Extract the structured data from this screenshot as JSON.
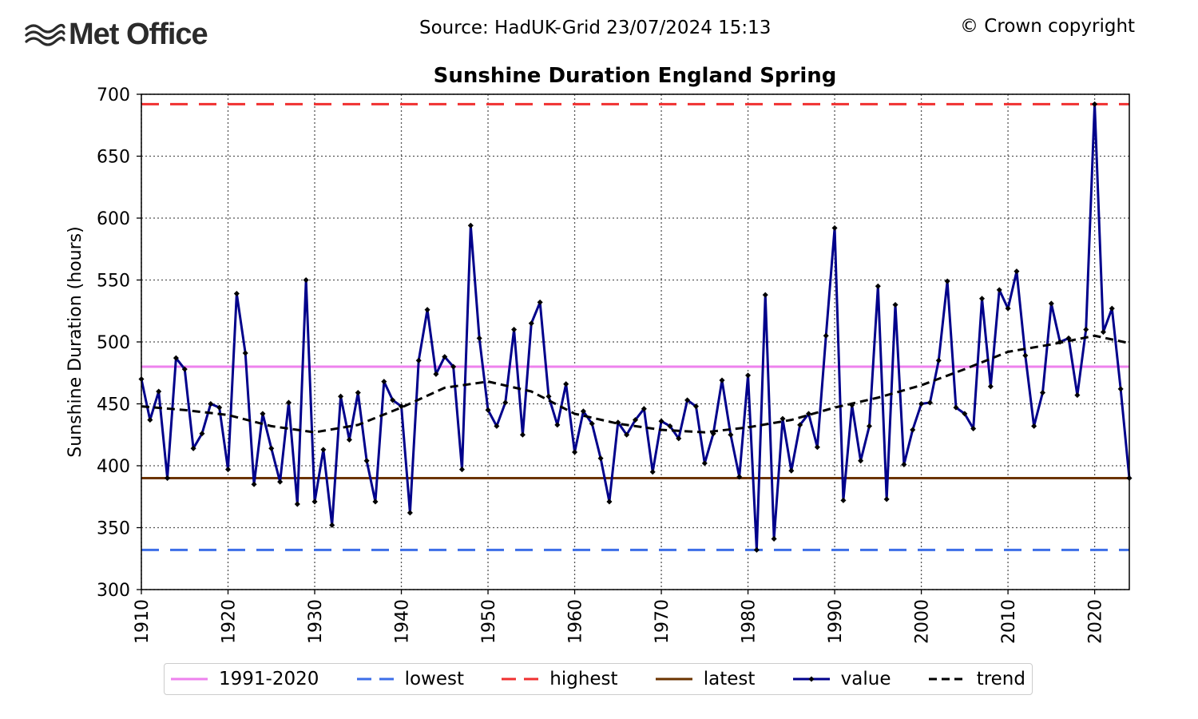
{
  "header": {
    "logo_text": "Met Office",
    "source": "Source: HadUK-Grid 23/07/2024 15:13",
    "copyright": "© Crown copyright"
  },
  "chart_data": {
    "type": "line",
    "title": "Sunshine Duration England Spring",
    "xlabel": "",
    "ylabel": "Sunshine Duration (hours)",
    "xlim": [
      1910,
      2024
    ],
    "ylim": [
      300,
      700
    ],
    "xticks": [
      "1910",
      "1920",
      "1930",
      "1940",
      "1950",
      "1960",
      "1970",
      "1980",
      "1990",
      "2000",
      "2010",
      "2020"
    ],
    "yticks": [
      "300",
      "350",
      "400",
      "450",
      "500",
      "550",
      "600",
      "650",
      "700"
    ],
    "grid": true,
    "legend_position": "bottom",
    "reference_lines": [
      {
        "name": "1991-2020",
        "value": 480,
        "color": "#ee82ee",
        "style": "solid"
      },
      {
        "name": "lowest",
        "value": 332,
        "color": "#3c6ee8",
        "style": "dashed"
      },
      {
        "name": "highest",
        "value": 692,
        "color": "#f03030",
        "style": "dashed"
      },
      {
        "name": "latest",
        "value": 390,
        "color": "#6b3300",
        "style": "solid"
      }
    ],
    "series": [
      {
        "name": "value",
        "color": "#00008b",
        "x": [
          1910,
          1911,
          1912,
          1913,
          1914,
          1915,
          1916,
          1917,
          1918,
          1919,
          1920,
          1921,
          1922,
          1923,
          1924,
          1925,
          1926,
          1927,
          1928,
          1929,
          1930,
          1931,
          1932,
          1933,
          1934,
          1935,
          1936,
          1937,
          1938,
          1939,
          1940,
          1941,
          1942,
          1943,
          1944,
          1945,
          1946,
          1947,
          1948,
          1949,
          1950,
          1951,
          1952,
          1953,
          1954,
          1955,
          1956,
          1957,
          1958,
          1959,
          1960,
          1961,
          1962,
          1963,
          1964,
          1965,
          1966,
          1967,
          1968,
          1969,
          1970,
          1971,
          1972,
          1973,
          1974,
          1975,
          1976,
          1977,
          1978,
          1979,
          1980,
          1981,
          1982,
          1983,
          1984,
          1985,
          1986,
          1987,
          1988,
          1989,
          1990,
          1991,
          1992,
          1993,
          1994,
          1995,
          1996,
          1997,
          1998,
          1999,
          2000,
          2001,
          2002,
          2003,
          2004,
          2005,
          2006,
          2007,
          2008,
          2009,
          2010,
          2011,
          2012,
          2013,
          2014,
          2015,
          2016,
          2017,
          2018,
          2019,
          2020,
          2021,
          2022,
          2023,
          2024
        ],
        "values": [
          470,
          437,
          460,
          390,
          487,
          478,
          414,
          426,
          450,
          447,
          397,
          539,
          491,
          385,
          442,
          414,
          387,
          451,
          369,
          550,
          371,
          413,
          352,
          456,
          421,
          459,
          404,
          371,
          468,
          453,
          448,
          362,
          485,
          526,
          474,
          488,
          480,
          397,
          594,
          503,
          445,
          432,
          451,
          510,
          425,
          515,
          532,
          456,
          433,
          466,
          411,
          444,
          434,
          406,
          371,
          435,
          425,
          437,
          446,
          395,
          436,
          432,
          422,
          453,
          448,
          402,
          426,
          469,
          425,
          391,
          473,
          332,
          538,
          341,
          438,
          396,
          433,
          442,
          415,
          505,
          592,
          372,
          449,
          404,
          432,
          545,
          373,
          530,
          401,
          429,
          450,
          451,
          485,
          549,
          447,
          442,
          430,
          535,
          464,
          542,
          527,
          557,
          489,
          432,
          459,
          531,
          500,
          503,
          457,
          510,
          692,
          508,
          527,
          462,
          390
        ]
      },
      {
        "name": "trend",
        "color": "#000000",
        "x": [
          1910,
          1915,
          1920,
          1925,
          1930,
          1935,
          1940,
          1945,
          1950,
          1955,
          1960,
          1965,
          1970,
          1975,
          1980,
          1985,
          1990,
          1995,
          2000,
          2005,
          2010,
          2015,
          2020,
          2024
        ],
        "values": [
          448,
          445,
          441,
          432,
          427,
          433,
          447,
          463,
          468,
          460,
          442,
          434,
          429,
          427,
          431,
          437,
          447,
          455,
          465,
          478,
          492,
          498,
          505,
          499
        ]
      }
    ]
  }
}
